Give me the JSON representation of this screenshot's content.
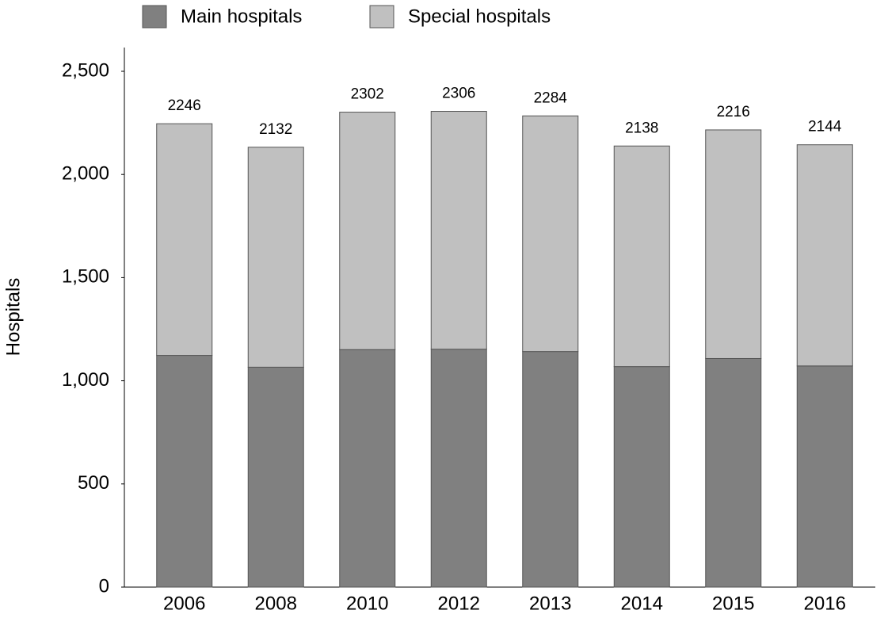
{
  "chart_data": {
    "type": "stacked_bar",
    "y_label": "Hospitals",
    "categories": [
      "2006",
      "2008",
      "2010",
      "2012",
      "2013",
      "2014",
      "2015",
      "2016"
    ],
    "series": [
      {
        "name": "Main hospitals",
        "color": "#808080",
        "values": [
          1123,
          1066,
          1151,
          1153,
          1142,
          1069,
          1108,
          1072
        ]
      },
      {
        "name": "Special hospitals",
        "color": "#c0c0c0",
        "values": [
          1123,
          1066,
          1151,
          1153,
          1142,
          1069,
          1108,
          1072
        ]
      }
    ],
    "totals": [
      2246,
      2132,
      2302,
      2306,
      2284,
      2138,
      2216,
      2144
    ],
    "ylim": [
      0,
      2500
    ],
    "yticks": [
      0,
      500,
      {
        "value": 1000,
        "label": "1,000"
      },
      {
        "value": 1500,
        "label": "1,500"
      },
      {
        "value": 2000,
        "label": "2,000"
      },
      {
        "value": 2500,
        "label": "2,500"
      }
    ],
    "grid": false,
    "legend": "top"
  }
}
